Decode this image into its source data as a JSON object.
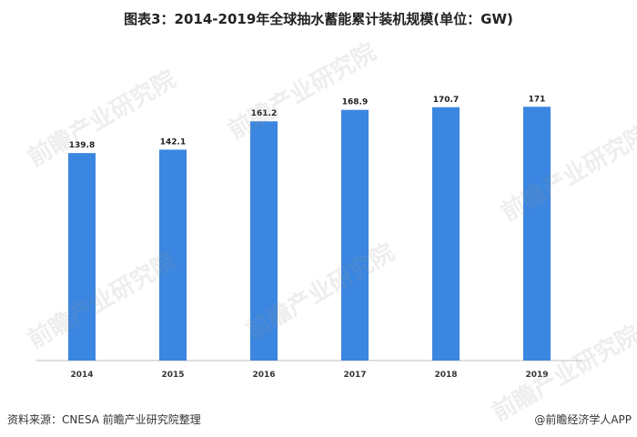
{
  "chart_data": {
    "type": "bar",
    "title": "图表3：2014-2019年全球抽水蓄能累计装机规模(单位：GW)",
    "categories": [
      "2014",
      "2015",
      "2016",
      "2017",
      "2018",
      "2019"
    ],
    "values": [
      139.8,
      142.1,
      161.2,
      168.9,
      170.7,
      171
    ],
    "value_labels": [
      "139.8",
      "142.1",
      "161.2",
      "168.9",
      "170.7",
      "171"
    ],
    "ylim": [
      0,
      200
    ],
    "grid": false,
    "legend": false,
    "bar_color": "#3b86e0"
  },
  "footer": {
    "source": "资料来源：CNESA 前瞻产业研究院整理",
    "brand": "@前瞻经济学人APP"
  },
  "watermark": {
    "text": "前瞻产业研究院"
  }
}
